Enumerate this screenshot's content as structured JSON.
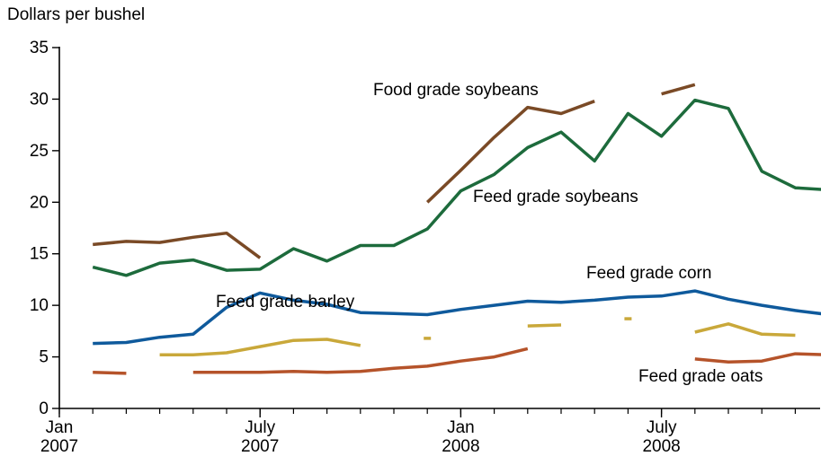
{
  "chart_data": {
    "type": "line",
    "title": "",
    "ylabel": "Dollars per bushel",
    "xlabel": "",
    "ylim": [
      0,
      35
    ],
    "yticks": [
      0,
      5,
      10,
      15,
      20,
      25,
      30,
      35
    ],
    "x_range_months": [
      "2007-01",
      "2008-12"
    ],
    "xticks": [
      {
        "month": "2007-01",
        "line1": "Jan",
        "line2": "2007"
      },
      {
        "month": "2007-07",
        "line1": "July",
        "line2": "2007"
      },
      {
        "month": "2008-01",
        "line1": "Jan",
        "line2": "2008"
      },
      {
        "month": "2008-07",
        "line1": "July",
        "line2": "2008"
      }
    ],
    "grid": false,
    "legend": "inline labels",
    "series": [
      {
        "name": "Food grade soybeans",
        "color": "#7a4a26",
        "points": [
          [
            "2007-02",
            15.9
          ],
          [
            "2007-03",
            16.2
          ],
          [
            "2007-04",
            16.1
          ],
          [
            "2007-05",
            16.6
          ],
          [
            "2007-06",
            17.0
          ],
          [
            "2007-07",
            14.6
          ],
          [
            "2007-08",
            null
          ],
          [
            "2007-09",
            null
          ],
          [
            "2007-10",
            null
          ],
          [
            "2007-11",
            null
          ],
          [
            "2007-12",
            20.0
          ],
          [
            "2008-01",
            23.1
          ],
          [
            "2008-02",
            26.3
          ],
          [
            "2008-03",
            29.2
          ],
          [
            "2008-04",
            28.6
          ],
          [
            "2008-05",
            29.8
          ],
          [
            "2008-06",
            null
          ],
          [
            "2008-07",
            30.5
          ],
          [
            "2008-08",
            31.4
          ]
        ]
      },
      {
        "name": "Feed grade soybeans",
        "color": "#1d6b3c",
        "points": [
          [
            "2007-02",
            13.7
          ],
          [
            "2007-03",
            12.9
          ],
          [
            "2007-04",
            14.1
          ],
          [
            "2007-05",
            14.4
          ],
          [
            "2007-06",
            13.4
          ],
          [
            "2007-07",
            13.5
          ],
          [
            "2007-08",
            15.5
          ],
          [
            "2007-09",
            14.3
          ],
          [
            "2007-10",
            15.8
          ],
          [
            "2007-11",
            15.8
          ],
          [
            "2007-12",
            17.4
          ],
          [
            "2008-01",
            21.1
          ],
          [
            "2008-02",
            22.7
          ],
          [
            "2008-03",
            25.3
          ],
          [
            "2008-04",
            26.8
          ],
          [
            "2008-05",
            24.0
          ],
          [
            "2008-06",
            28.6
          ],
          [
            "2008-07",
            26.4
          ],
          [
            "2008-08",
            29.9
          ],
          [
            "2008-09",
            29.1
          ],
          [
            "2008-10",
            23.0
          ],
          [
            "2008-11",
            21.4
          ],
          [
            "2008-12",
            21.2
          ]
        ]
      },
      {
        "name": "Feed grade corn",
        "color": "#0f5a9c",
        "points": [
          [
            "2007-02",
            6.3
          ],
          [
            "2007-03",
            6.4
          ],
          [
            "2007-04",
            6.9
          ],
          [
            "2007-05",
            7.2
          ],
          [
            "2007-06",
            9.8
          ],
          [
            "2007-07",
            11.2
          ],
          [
            "2007-08",
            10.5
          ],
          [
            "2007-09",
            10.1
          ],
          [
            "2007-10",
            9.3
          ],
          [
            "2007-11",
            9.2
          ],
          [
            "2007-12",
            9.1
          ],
          [
            "2008-01",
            9.6
          ],
          [
            "2008-02",
            10.0
          ],
          [
            "2008-03",
            10.4
          ],
          [
            "2008-04",
            10.3
          ],
          [
            "2008-05",
            10.5
          ],
          [
            "2008-06",
            10.8
          ],
          [
            "2008-07",
            10.9
          ],
          [
            "2008-08",
            11.4
          ],
          [
            "2008-09",
            10.6
          ],
          [
            "2008-10",
            10.0
          ],
          [
            "2008-11",
            9.5
          ],
          [
            "2008-12",
            9.1
          ]
        ]
      },
      {
        "name": "Feed grade barley",
        "color": "#c9a83a",
        "points": [
          [
            "2007-02",
            null
          ],
          [
            "2007-03",
            null
          ],
          [
            "2007-04",
            5.2
          ],
          [
            "2007-05",
            5.2
          ],
          [
            "2007-06",
            5.4
          ],
          [
            "2007-07",
            6.0
          ],
          [
            "2007-08",
            6.6
          ],
          [
            "2007-09",
            6.7
          ],
          [
            "2007-10",
            6.1
          ],
          [
            "2007-11",
            null
          ],
          [
            "2007-12",
            6.8
          ],
          [
            "2008-01",
            null
          ],
          [
            "2008-02",
            null
          ],
          [
            "2008-03",
            8.0
          ],
          [
            "2008-04",
            8.1
          ],
          [
            "2008-05",
            null
          ],
          [
            "2008-06",
            8.7
          ],
          [
            "2008-07",
            null
          ],
          [
            "2008-08",
            7.4
          ],
          [
            "2008-09",
            8.2
          ],
          [
            "2008-10",
            7.2
          ],
          [
            "2008-11",
            7.1
          ]
        ]
      },
      {
        "name": "Feed grade oats",
        "color": "#b5532a",
        "points": [
          [
            "2007-02",
            3.5
          ],
          [
            "2007-03",
            3.4
          ],
          [
            "2007-04",
            null
          ],
          [
            "2007-05",
            3.5
          ],
          [
            "2007-06",
            3.5
          ],
          [
            "2007-07",
            3.5
          ],
          [
            "2007-08",
            3.6
          ],
          [
            "2007-09",
            3.5
          ],
          [
            "2007-10",
            3.6
          ],
          [
            "2007-11",
            3.9
          ],
          [
            "2007-12",
            4.1
          ],
          [
            "2008-01",
            4.6
          ],
          [
            "2008-02",
            5.0
          ],
          [
            "2008-03",
            5.8
          ],
          [
            "2008-04",
            null
          ],
          [
            "2008-05",
            null
          ],
          [
            "2008-06",
            null
          ],
          [
            "2008-07",
            null
          ],
          [
            "2008-08",
            4.8
          ],
          [
            "2008-09",
            4.5
          ],
          [
            "2008-10",
            4.6
          ],
          [
            "2008-11",
            5.3
          ],
          [
            "2008-12",
            5.2
          ]
        ]
      }
    ]
  }
}
